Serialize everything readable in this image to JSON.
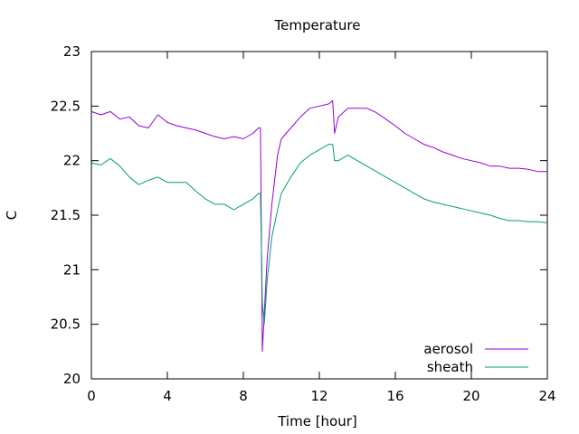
{
  "chart_data": {
    "type": "line",
    "title": "Temperature",
    "xlabel": "Time [hour]",
    "ylabel": "C",
    "xlim": [
      0,
      24
    ],
    "ylim": [
      20,
      23
    ],
    "xticks": [
      0,
      4,
      8,
      12,
      16,
      20,
      24
    ],
    "yticks": [
      20,
      20.5,
      21,
      21.5,
      22,
      22.5,
      23
    ],
    "ytick_labels": [
      "20",
      "20.5",
      "21",
      "21.5",
      "22",
      "22.5",
      "23"
    ],
    "grid": false,
    "legend_position": "bottom-right",
    "series": [
      {
        "name": "aerosol",
        "color": "#9400d3",
        "x": [
          0,
          0.5,
          1,
          1.5,
          2,
          2.5,
          3,
          3.5,
          4,
          4.5,
          5,
          5.5,
          6,
          6.5,
          7,
          7.5,
          8,
          8.5,
          8.8,
          8.9,
          9.0,
          9.1,
          9.25,
          9.5,
          9.8,
          10,
          10.5,
          11,
          11.5,
          12,
          12.5,
          12.7,
          12.8,
          13,
          13.5,
          14,
          14.5,
          15,
          15.5,
          16,
          16.5,
          17,
          17.5,
          18,
          18.5,
          19,
          19.5,
          20,
          20.5,
          21,
          21.5,
          22,
          22.5,
          23,
          23.5,
          24
        ],
        "y": [
          22.45,
          22.42,
          22.45,
          22.38,
          22.4,
          22.32,
          22.3,
          22.42,
          22.35,
          22.32,
          22.3,
          22.28,
          22.25,
          22.22,
          22.2,
          22.22,
          22.2,
          22.25,
          22.3,
          22.3,
          20.25,
          20.6,
          21.1,
          21.6,
          22.05,
          22.2,
          22.3,
          22.4,
          22.48,
          22.5,
          22.52,
          22.55,
          22.25,
          22.4,
          22.48,
          22.48,
          22.48,
          22.44,
          22.38,
          22.32,
          22.25,
          22.2,
          22.15,
          22.12,
          22.08,
          22.05,
          22.02,
          22.0,
          21.98,
          21.95,
          21.95,
          21.93,
          21.93,
          21.92,
          21.9,
          21.9
        ]
      },
      {
        "name": "sheath",
        "color": "#009e73",
        "x": [
          0,
          0.5,
          1,
          1.5,
          2,
          2.5,
          3,
          3.5,
          4,
          4.5,
          5,
          5.5,
          6,
          6.5,
          7,
          7.5,
          8,
          8.5,
          8.8,
          8.9,
          9.0,
          9.1,
          9.25,
          9.5,
          9.8,
          10,
          10.5,
          11,
          11.5,
          12,
          12.5,
          12.7,
          12.8,
          13,
          13.5,
          14,
          14.5,
          15,
          15.5,
          16,
          16.5,
          17,
          17.5,
          18,
          18.5,
          19,
          19.5,
          20,
          20.5,
          21,
          21.5,
          22,
          22.5,
          23,
          23.5,
          24
        ],
        "y": [
          21.98,
          21.96,
          22.02,
          21.95,
          21.85,
          21.78,
          21.82,
          21.85,
          21.8,
          21.8,
          21.8,
          21.72,
          21.65,
          21.6,
          21.6,
          21.55,
          21.6,
          21.65,
          21.7,
          21.7,
          20.7,
          20.5,
          20.9,
          21.3,
          21.55,
          21.7,
          21.85,
          21.98,
          22.05,
          22.1,
          22.15,
          22.15,
          22.0,
          22.0,
          22.05,
          22.0,
          21.95,
          21.9,
          21.85,
          21.8,
          21.75,
          21.7,
          21.65,
          21.62,
          21.6,
          21.58,
          21.56,
          21.54,
          21.52,
          21.5,
          21.47,
          21.45,
          21.45,
          21.44,
          21.44,
          21.43
        ]
      }
    ]
  }
}
